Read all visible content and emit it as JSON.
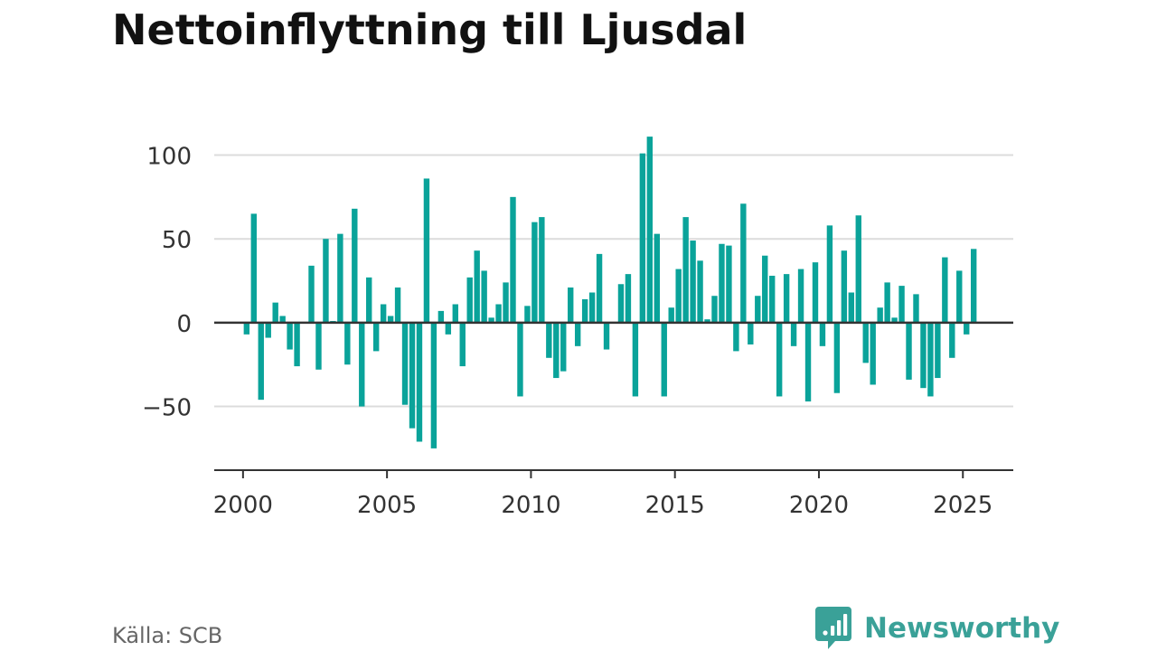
{
  "title": "Nettoinflyttning till Ljusdal",
  "source": "Källa: SCB",
  "brand": {
    "name": "Newsworthy",
    "icon": "chart-bubble-icon",
    "color": "#3aa198"
  },
  "colors": {
    "bar": "#0aa39a",
    "grid": "#dcdcdc",
    "axis": "#333333",
    "text": "#333333"
  },
  "chart_data": {
    "type": "bar",
    "title": "Nettoinflyttning till Ljusdal",
    "xlabel": "",
    "ylabel": "",
    "x_ticks": [
      2000,
      2005,
      2010,
      2015,
      2020,
      2025
    ],
    "y_ticks": [
      -50,
      0,
      50,
      100
    ],
    "ylim": [
      -88,
      117
    ],
    "xlim": [
      1999.0,
      2026.75
    ],
    "grid": true,
    "x": [
      2000.125,
      2000.375,
      2000.625,
      2000.875,
      2001.125,
      2001.375,
      2001.625,
      2001.875,
      2002.125,
      2002.375,
      2002.625,
      2002.875,
      2003.125,
      2003.375,
      2003.625,
      2003.875,
      2004.125,
      2004.375,
      2004.625,
      2004.875,
      2005.125,
      2005.375,
      2005.625,
      2005.875,
      2006.125,
      2006.375,
      2006.625,
      2006.875,
      2007.125,
      2007.375,
      2007.625,
      2007.875,
      2008.125,
      2008.375,
      2008.625,
      2008.875,
      2009.125,
      2009.375,
      2009.625,
      2009.875,
      2010.125,
      2010.375,
      2010.625,
      2010.875,
      2011.125,
      2011.375,
      2011.625,
      2011.875,
      2012.125,
      2012.375,
      2012.625,
      2012.875,
      2013.125,
      2013.375,
      2013.625,
      2013.875,
      2014.125,
      2014.375,
      2014.625,
      2014.875,
      2015.125,
      2015.375,
      2015.625,
      2015.875,
      2016.125,
      2016.375,
      2016.625,
      2016.875,
      2017.125,
      2017.375,
      2017.625,
      2017.875,
      2018.125,
      2018.375,
      2018.625,
      2018.875,
      2019.125,
      2019.375,
      2019.625,
      2019.875,
      2020.125,
      2020.375,
      2020.625,
      2020.875,
      2021.125,
      2021.375,
      2021.625,
      2021.875,
      2022.125,
      2022.375,
      2022.625,
      2022.875,
      2023.125,
      2023.375,
      2023.625,
      2023.875,
      2024.125,
      2024.375,
      2024.625,
      2024.875,
      2025.125,
      2025.375
    ],
    "values": [
      -7,
      65,
      -46,
      -9,
      12,
      4,
      -16,
      -26,
      0,
      34,
      -28,
      50,
      1,
      53,
      -25,
      68,
      -50,
      27,
      -17,
      11,
      4,
      21,
      -49,
      -63,
      -71,
      86,
      -75,
      7,
      -7,
      11,
      -26,
      27,
      43,
      31,
      3,
      11,
      24,
      75,
      -44,
      10,
      60,
      63,
      -21,
      -33,
      -29,
      21,
      -14,
      14,
      18,
      41,
      -16,
      0,
      23,
      29,
      -44,
      101,
      111,
      53,
      -44,
      9,
      32,
      63,
      49,
      37,
      2,
      16,
      47,
      46,
      -17,
      71,
      -13,
      16,
      40,
      28,
      -44,
      29,
      -14,
      32,
      -47,
      36,
      -14,
      58,
      -42,
      43,
      18,
      64,
      -24,
      -37,
      9,
      24,
      3,
      22,
      -34,
      17,
      -39,
      -44,
      -33,
      39,
      -21,
      31,
      -7,
      44
    ]
  }
}
